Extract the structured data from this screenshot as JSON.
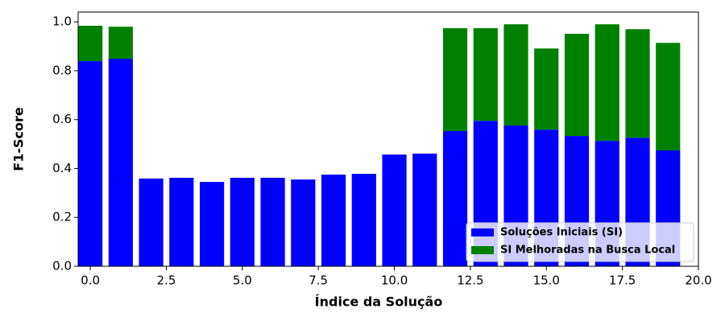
{
  "chart_data": {
    "type": "bar",
    "stacked": true,
    "x_label": "Índice da Solução",
    "y_label": "F1-Score",
    "x": [
      0,
      1,
      2,
      3,
      4,
      5,
      6,
      7,
      8,
      9,
      10,
      11,
      12,
      13,
      14,
      15,
      16,
      17,
      18,
      19
    ],
    "bar_width": 0.8,
    "series": [
      {
        "name": "Soluções Iniciais (SI)",
        "color": "#0000ff",
        "values": [
          0.839,
          0.849,
          0.359,
          0.362,
          0.345,
          0.362,
          0.362,
          0.355,
          0.375,
          0.378,
          0.457,
          0.461,
          0.553,
          0.595,
          0.576,
          0.559,
          0.533,
          0.513,
          0.526,
          0.474
        ]
      },
      {
        "name": "SI Melhoradas na Busca Local",
        "color": "#008000",
        "values": [
          0.145,
          0.131,
          0,
          0,
          0,
          0,
          0,
          0,
          0,
          0,
          0,
          0,
          0.421,
          0.379,
          0.414,
          0.332,
          0.418,
          0.477,
          0.444,
          0.44
        ]
      }
    ],
    "xlim": [
      -0.4,
      20
    ],
    "ylim": [
      0,
      1.04
    ],
    "xticks": [
      {
        "value": 0,
        "label": "0.0"
      },
      {
        "value": 2.5,
        "label": "2.5"
      },
      {
        "value": 5,
        "label": "5.0"
      },
      {
        "value": 7.5,
        "label": "7.5"
      },
      {
        "value": 10,
        "label": "10.0"
      },
      {
        "value": 12.5,
        "label": "12.5"
      },
      {
        "value": 15,
        "label": "15.0"
      },
      {
        "value": 17.5,
        "label": "17.5"
      },
      {
        "value": 20,
        "label": "20.0"
      }
    ],
    "yticks": [
      {
        "value": 0,
        "label": "0.0"
      },
      {
        "value": 0.2,
        "label": "0.2"
      },
      {
        "value": 0.4,
        "label": "0.4"
      },
      {
        "value": 0.6,
        "label": "0.6"
      },
      {
        "value": 0.8,
        "label": "0.8"
      },
      {
        "value": 1,
        "label": "1.0"
      }
    ],
    "legend": "lower right"
  }
}
